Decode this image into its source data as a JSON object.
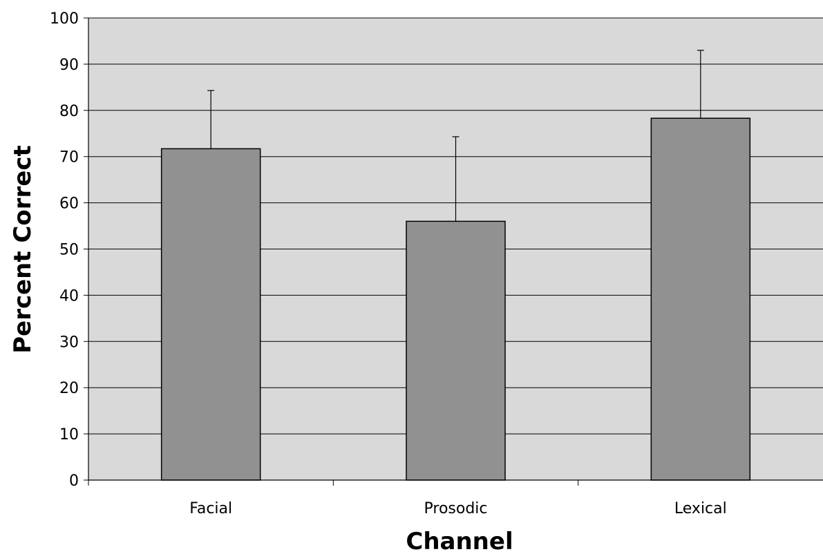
{
  "chart_data": {
    "type": "bar",
    "xlabel": "Channel",
    "ylabel": "Percent Correct",
    "categories": [
      "Facial",
      "Prosodic",
      "Lexical"
    ],
    "values": [
      71.7,
      56.0,
      78.3
    ],
    "error_upper": [
      84.3,
      74.3,
      93.0
    ],
    "error_bars": "upper only",
    "ylim": [
      0,
      100
    ],
    "y_ticks": [
      "0",
      "10",
      "20",
      "30",
      "40",
      "50",
      "60",
      "70",
      "80",
      "90",
      "100"
    ],
    "grid": "horizontal",
    "legend": "none",
    "colors": {
      "bar_fill": "#919191",
      "bar_stroke": "#000000",
      "plot_background": "#d9d9d9",
      "grid": "#000000"
    }
  }
}
